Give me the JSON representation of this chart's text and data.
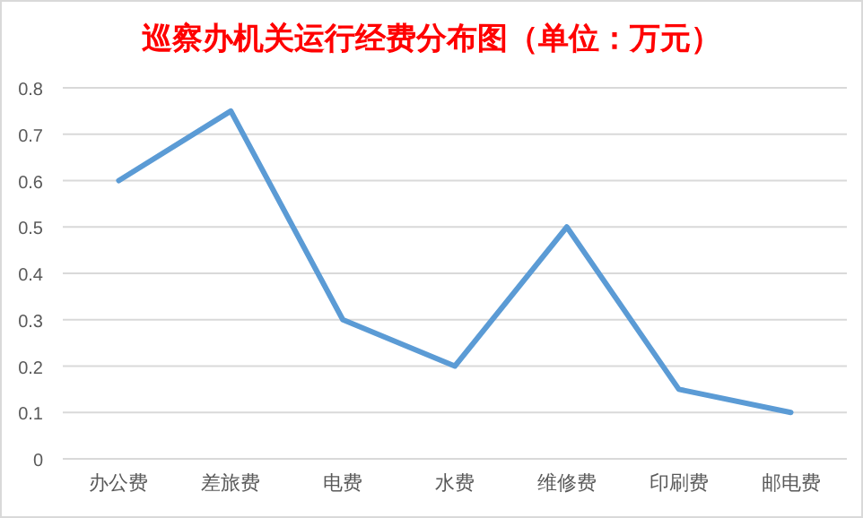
{
  "chart_data": {
    "type": "line",
    "title": "巡察办机关运行经费分布图（单位：万元）",
    "categories": [
      "办公费",
      "差旅费",
      "电费",
      "水费",
      "维修费",
      "印刷费",
      "邮电费"
    ],
    "series": [
      {
        "color": "#5b9bd5",
        "values": [
          0.6,
          0.75,
          0.3,
          0.2,
          0.5,
          0.15,
          0.1
        ]
      }
    ],
    "ylim": [
      0,
      0.8
    ],
    "yticks": [
      0,
      0.1,
      0.2,
      0.3,
      0.4,
      0.5,
      0.6,
      0.7,
      0.8
    ],
    "grid": "y",
    "marker": "none",
    "line_style": "solid"
  }
}
